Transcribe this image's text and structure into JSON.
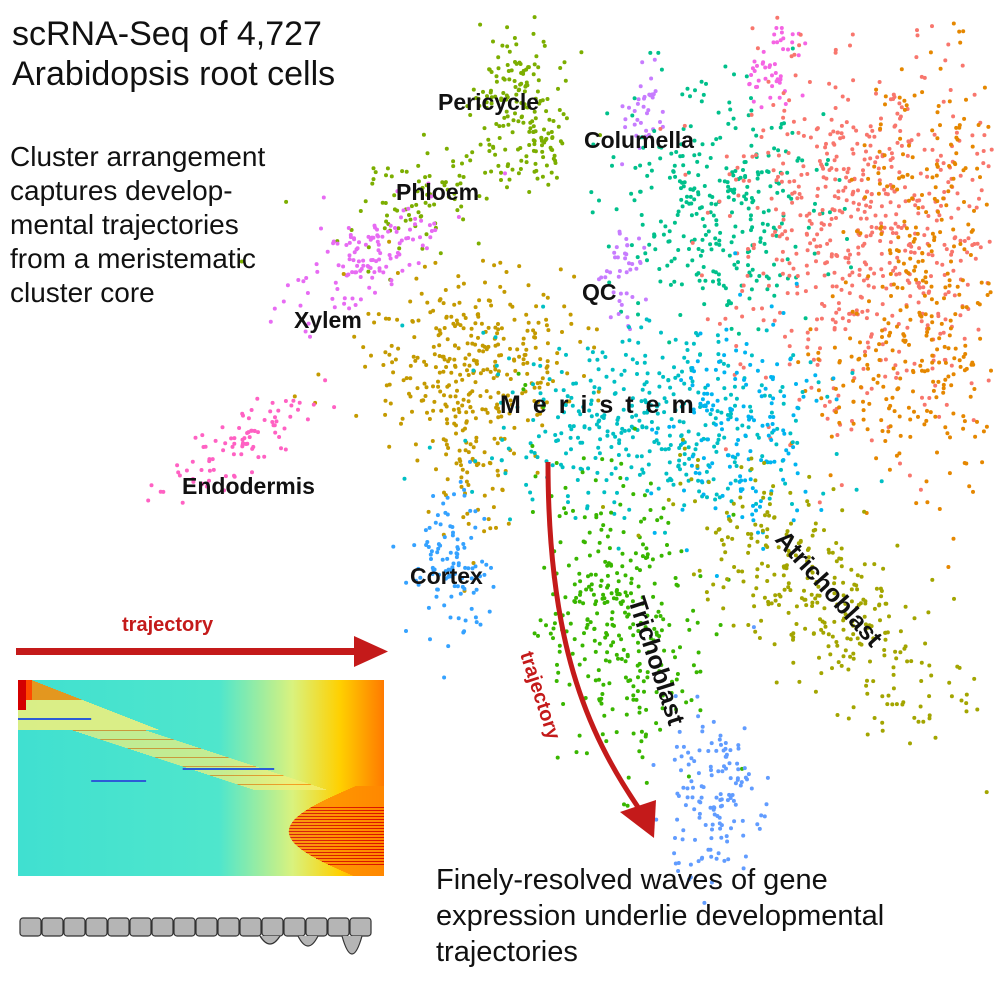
{
  "title": "scRNA-Seq of 4,727\nArabidopsis root cells",
  "subtitle": "Cluster arrangement\ncaptures develop-\nmental trajectories\nfrom a meristematic\ncluster core",
  "bottom_caption": "Finely-resolved waves of gene\nexpression underlie developmental\ntrajectories",
  "trajectory_label_top": "trajectory",
  "trajectory_label_curved": "trajectory",
  "clusters": [
    {
      "name": "Pericycle",
      "color": "#7cae00"
    },
    {
      "name": "Columella",
      "color": "#c77cff"
    },
    {
      "name": "Phloem",
      "color": "#7cae00"
    },
    {
      "name": "Xylem",
      "color": "#e76bf3"
    },
    {
      "name": "QC",
      "color": "#c77cff"
    },
    {
      "name": "Meristem",
      "color": "#00bfc4"
    },
    {
      "name": "Endodermis",
      "color": "#ff61c3"
    },
    {
      "name": "Cortex",
      "color": "#35a2ff"
    },
    {
      "name": "Trichoblast",
      "color": "#39b600"
    },
    {
      "name": "Atrichoblast",
      "color": "#a3a500"
    }
  ],
  "accent_color": "#c41a1a",
  "heatmap_colors": [
    "#40e0d0",
    "#f5f07a",
    "#ffd000",
    "#ff7a00",
    "#d40000",
    "#2c5cd6"
  ],
  "bar_color": "#b5b5b5"
}
